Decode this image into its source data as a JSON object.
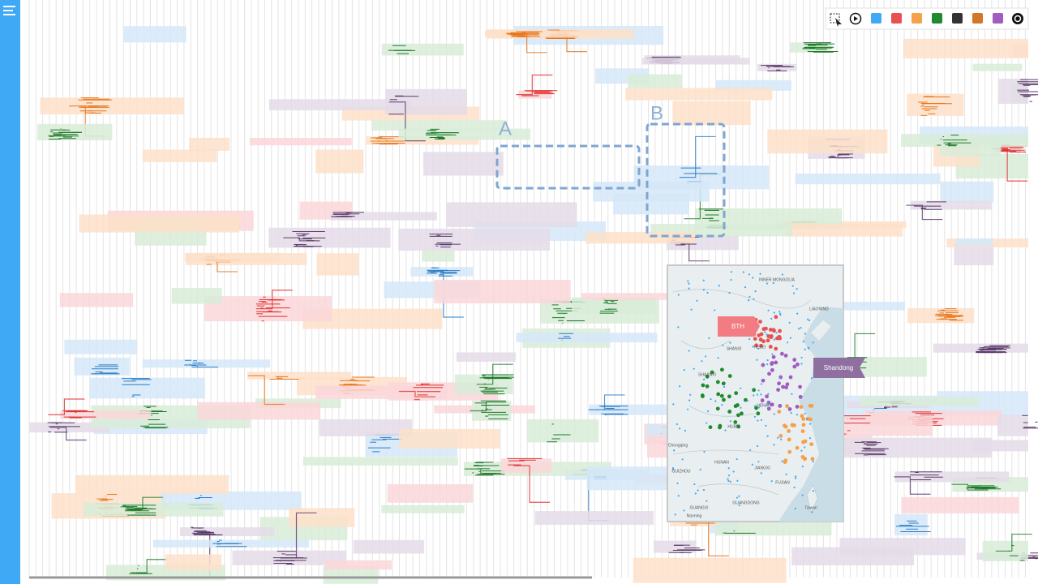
{
  "toolbar": {
    "swatches": [
      "#3fa9f5",
      "#e8514f",
      "#f5a04a",
      "#1f8a2e",
      "#333333",
      "#d2772c",
      "#a05cc0"
    ]
  },
  "annotations": {
    "a": "A",
    "b": "B"
  },
  "map": {
    "region_labels": {
      "bth": "BTH",
      "shandong": "Shandong"
    },
    "place_labels": [
      "INNER MONGOLIA",
      "LIAONING",
      "SHANXI",
      "HEBEI",
      "SHAANXI",
      "HENAN",
      "HUBEI",
      "Chongqing",
      "HUNAN",
      "JIANGXI",
      "GUIZHOU",
      "FUJIAN",
      "GUANGDONG",
      "GUANGXI",
      "Nanning",
      "Taiwan"
    ]
  }
}
